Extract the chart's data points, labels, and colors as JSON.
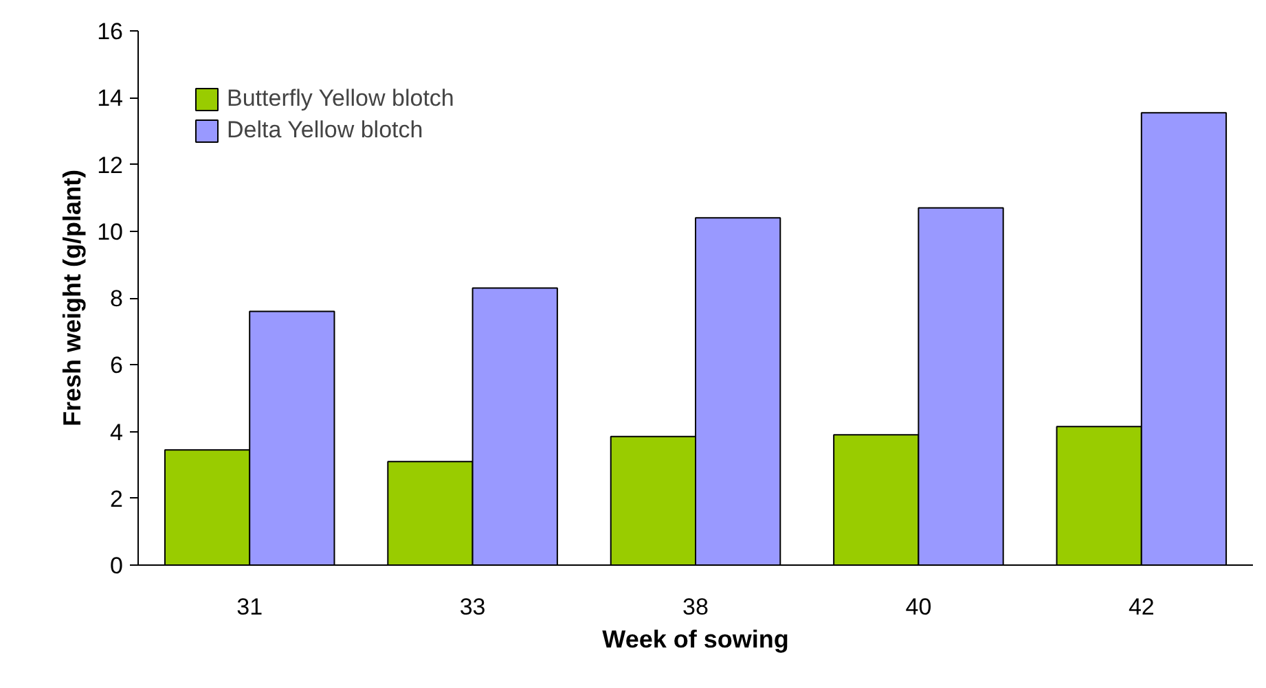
{
  "chart_data": {
    "type": "bar",
    "categories": [
      "31",
      "33",
      "38",
      "40",
      "42"
    ],
    "series": [
      {
        "name": "Butterfly Yellow blotch",
        "color": "#99cc00",
        "values": [
          3.45,
          3.1,
          3.85,
          3.9,
          4.15
        ]
      },
      {
        "name": "Delta Yellow blotch",
        "color": "#9999ff",
        "values": [
          7.6,
          8.3,
          10.4,
          10.7,
          13.55
        ]
      }
    ],
    "xlabel": "Week of sowing",
    "ylabel": "Fresh weight (g/plant)",
    "ylim": [
      0,
      16
    ],
    "yticks": [
      0,
      2,
      4,
      6,
      8,
      10,
      12,
      14,
      16
    ],
    "grid": false,
    "legend": "top left"
  }
}
